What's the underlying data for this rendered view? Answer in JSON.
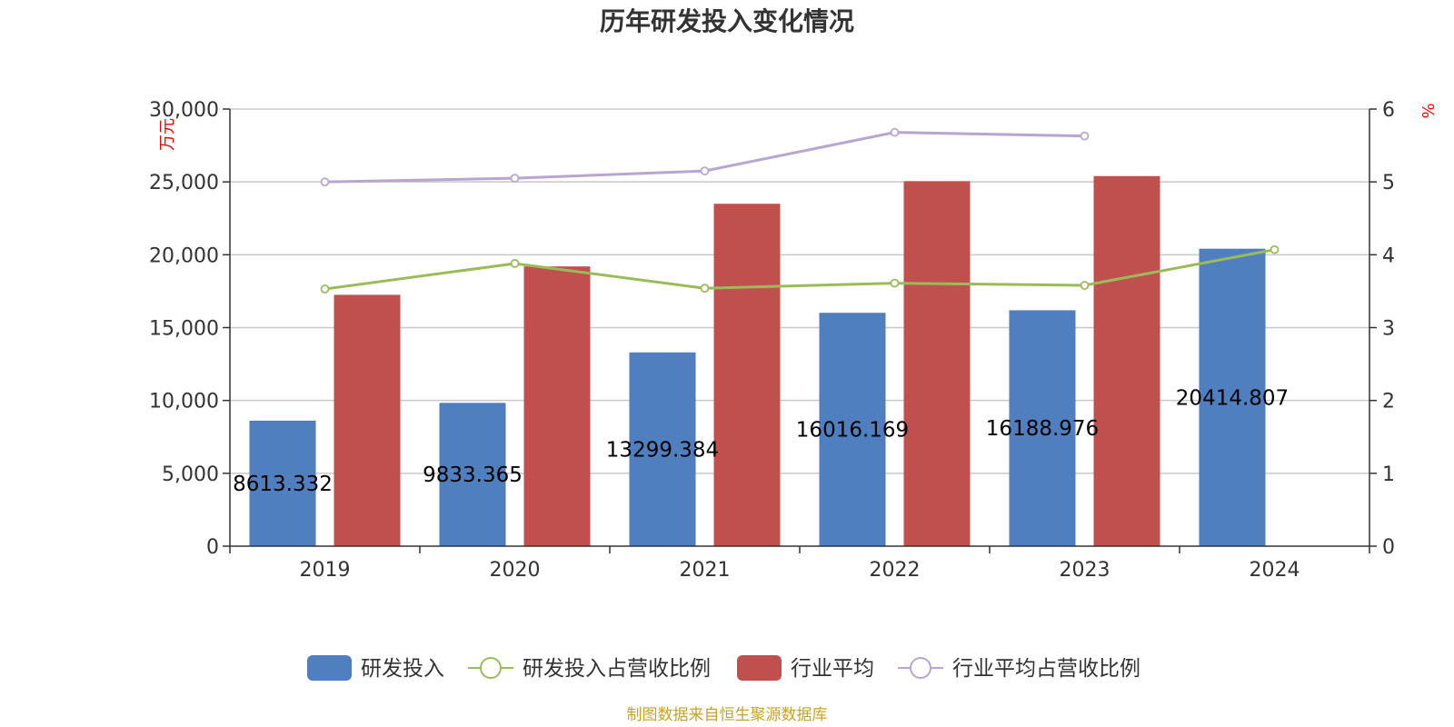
{
  "title": "历年研发投入变化情况",
  "source": "制图数据来自恒生聚源数据库",
  "colors": {
    "rd": "#4f7fbf",
    "rd_ratio": "#9bbb59",
    "industry": "#c0504d",
    "industry_ratio": "#b7a6d2"
  },
  "chart_data": {
    "type": "bar",
    "categories": [
      "2019",
      "2020",
      "2021",
      "2022",
      "2023",
      "2024"
    ],
    "left_axis": {
      "unit": "万元",
      "ylim": [
        0,
        30000
      ],
      "ticks": [
        "0",
        "5,000",
        "10,000",
        "15,000",
        "20,000",
        "25,000",
        "30,000"
      ]
    },
    "right_axis": {
      "unit": "%",
      "ylim": [
        0,
        6
      ],
      "ticks": [
        "0",
        "1",
        "2",
        "3",
        "4",
        "5",
        "6"
      ]
    },
    "series": [
      {
        "name": "研发投入",
        "kind": "bar",
        "axis": "left",
        "values": [
          8613.332,
          9833.365,
          13299.384,
          16016.169,
          16188.976,
          20414.807
        ],
        "labels": [
          "8613.332",
          "9833.365",
          "13299.384",
          "16016.169",
          "16188.976",
          "20414.807"
        ]
      },
      {
        "name": "研发投入占营收比例",
        "kind": "line",
        "axis": "right",
        "values": [
          3.53,
          3.88,
          3.54,
          3.61,
          3.58,
          4.07
        ]
      },
      {
        "name": "行业平均",
        "kind": "bar",
        "axis": "left",
        "values": [
          17250,
          19200,
          23500,
          25050,
          25400,
          null
        ]
      },
      {
        "name": "行业平均占营收比例",
        "kind": "line",
        "axis": "right",
        "values": [
          5.0,
          5.05,
          5.15,
          5.68,
          5.63,
          null
        ]
      }
    ],
    "grid": true,
    "legend_position": "bottom"
  }
}
